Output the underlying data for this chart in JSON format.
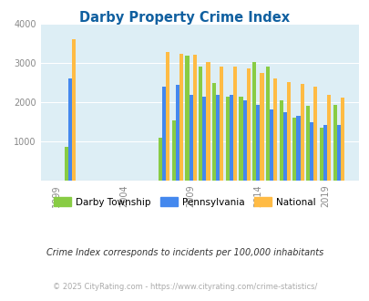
{
  "title": "Darby Property Crime Index",
  "title_color": "#1060a0",
  "years": [
    2000,
    2007,
    2008,
    2009,
    2010,
    2011,
    2012,
    2013,
    2014,
    2015,
    2016,
    2017,
    2018,
    2019,
    2020
  ],
  "darby": [
    870,
    1100,
    1530,
    3200,
    2920,
    2500,
    2150,
    2150,
    3020,
    2920,
    2050,
    1620,
    1900,
    1350,
    1940
  ],
  "pennsylvania": [
    2600,
    2390,
    2440,
    2200,
    2140,
    2200,
    2200,
    2060,
    1940,
    1820,
    1740,
    1650,
    1490,
    1420,
    1420
  ],
  "national": [
    3610,
    3290,
    3230,
    3210,
    3040,
    2920,
    2910,
    2870,
    2740,
    2610,
    2510,
    2480,
    2400,
    2200,
    2110
  ],
  "darby_color": "#88cc44",
  "pa_color": "#4488ee",
  "national_color": "#ffbb44",
  "plot_bg": "#ddeef5",
  "ylim": [
    0,
    4000
  ],
  "yticks": [
    0,
    1000,
    2000,
    3000,
    4000
  ],
  "xtick_labels": [
    "1999",
    "2004",
    "2009",
    "2014",
    "2019"
  ],
  "xtick_positions": [
    1999,
    2004,
    2009,
    2014,
    2019
  ],
  "bar_width": 0.28,
  "subtitle": "Crime Index corresponds to incidents per 100,000 inhabitants",
  "footer": "© 2025 CityRating.com - https://www.cityrating.com/crime-statistics/",
  "subtitle_color": "#333333",
  "footer_color": "#aaaaaa",
  "legend_labels": [
    "Darby Township",
    "Pennsylvania",
    "National"
  ]
}
